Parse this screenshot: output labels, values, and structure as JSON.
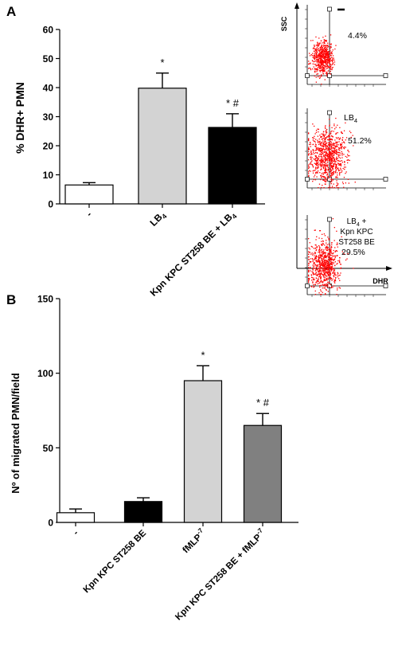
{
  "panels": {
    "a": {
      "label": "A"
    },
    "b": {
      "label": "B"
    }
  },
  "chart_data": [
    {
      "id": "A",
      "type": "bar",
      "ylabel": "% DHR+ PMN",
      "ylim": [
        0,
        60
      ],
      "yticks": [
        0,
        10,
        20,
        30,
        40,
        50,
        60
      ],
      "categories": [
        "-",
        "LB4",
        "Kpn KPC ST258 BE + LB4"
      ],
      "values": [
        6.5,
        39.8,
        26.3
      ],
      "errors": [
        0.8,
        5.2,
        4.7
      ],
      "annotations": [
        "",
        "*",
        "* #"
      ],
      "bar_colors": [
        "#ffffff",
        "#d3d3d3",
        "#000000"
      ]
    },
    {
      "id": "B",
      "type": "bar",
      "ylabel": "Nº of migrated PMN/field",
      "ylim": [
        0,
        150
      ],
      "yticks": [
        0,
        50,
        100,
        150
      ],
      "categories": [
        "-",
        "Kpn KPC ST258 BE",
        "fMLP-7",
        "Kpn KPC ST258 BE + fMLP-7"
      ],
      "values": [
        6.5,
        14,
        95,
        65
      ],
      "errors": [
        2.5,
        2.5,
        10,
        8
      ],
      "annotations": [
        "",
        "",
        "*",
        "* #"
      ],
      "bar_colors": [
        "#ffffff",
        "#000000",
        "#d3d3d3",
        "#808080"
      ]
    },
    {
      "id": "A-flow",
      "type": "scatter",
      "xlabel": "DHR",
      "ylabel": "SSC",
      "plots": [
        {
          "condition": "-",
          "percent": "4.4%"
        },
        {
          "condition": "LB4",
          "percent": "51.2%"
        },
        {
          "condition": "LB4 + Kpn KPC ST258 BE",
          "percent": "29.5%"
        }
      ],
      "dot_color": "#ff0000"
    }
  ]
}
